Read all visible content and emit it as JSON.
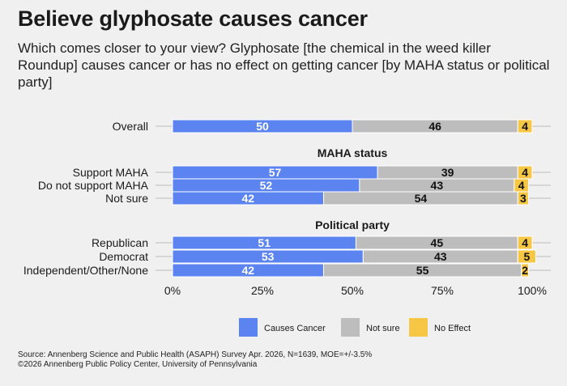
{
  "title": "Believe glyphosate causes cancer",
  "subtitle": "Which comes closer to your view? Glyphosate [the chemical in the weed killer Roundup] causes cancer or has no effect on getting cancer [by MAHA status or political party]",
  "source_line1": "Source: Annenberg Science and Public Health (ASAPH) Survey Apr. 2026, N=1639, MOE=+/-3.5%",
  "source_line2": "©2026 Annenberg Public Policy Center, University of Pennsylvania",
  "colors": {
    "causes_cancer": "#5b84f0",
    "not_sure": "#bdbdbd",
    "no_effect": "#f6c744",
    "background": "#f0f0f0"
  },
  "chart_data": {
    "type": "bar",
    "orientation": "horizontal-stacked",
    "xlim": [
      0,
      100
    ],
    "x_ticks": [
      "0%",
      "25%",
      "50%",
      "75%",
      "100%"
    ],
    "legend_position": "bottom",
    "series": [
      {
        "name": "Causes Cancer",
        "color": "#5b84f0"
      },
      {
        "name": "Not sure",
        "color": "#bdbdbd"
      },
      {
        "name": "No Effect",
        "color": "#f6c744"
      }
    ],
    "groups": [
      {
        "heading": "",
        "rows": [
          {
            "label": "Overall",
            "values": [
              50,
              46,
              4
            ]
          }
        ]
      },
      {
        "heading": "MAHA status",
        "rows": [
          {
            "label": "Support MAHA",
            "values": [
              57,
              39,
              4
            ]
          },
          {
            "label": "Do not support MAHA",
            "values": [
              52,
              43,
              4
            ]
          },
          {
            "label": "Not sure",
            "values": [
              42,
              54,
              3
            ]
          }
        ]
      },
      {
        "heading": "Political party",
        "rows": [
          {
            "label": "Republican",
            "values": [
              51,
              45,
              4
            ]
          },
          {
            "label": "Democrat",
            "values": [
              53,
              43,
              5
            ]
          },
          {
            "label": "Independent/Other/None",
            "values": [
              42,
              55,
              2
            ]
          }
        ]
      }
    ]
  }
}
